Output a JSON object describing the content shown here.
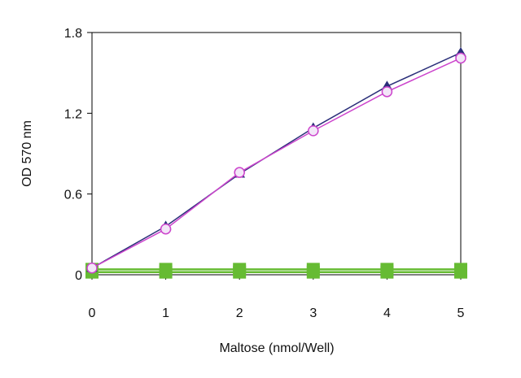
{
  "chart_data": {
    "type": "line",
    "xlabel": "Maltose (nmol/Well)",
    "ylabel": "OD 570 nm",
    "xlim": [
      0,
      5
    ],
    "ylim": [
      0,
      1.8
    ],
    "xticks": [
      0,
      1,
      2,
      3,
      4,
      5
    ],
    "xtick_labels": [
      "0",
      "1",
      "2",
      "3",
      "4",
      "5"
    ],
    "yticks": [
      0,
      0.6,
      1.2,
      1.8
    ],
    "ytick_labels": [
      "0",
      "0.6",
      "1.2",
      "1.8"
    ],
    "grid": false,
    "legend": "none",
    "x": [
      0,
      1,
      2,
      3,
      4,
      5
    ],
    "series": [
      {
        "values": [
          0.05,
          0.36,
          0.75,
          1.09,
          1.4,
          1.65
        ],
        "color": "#2b2f7a",
        "marker": "triangle"
      },
      {
        "values": [
          0.05,
          0.34,
          0.76,
          1.07,
          1.36,
          1.61
        ],
        "color": "#cc44cc",
        "marker": "circle-open"
      },
      {
        "values": [
          0.02,
          0.02,
          0.02,
          0.02,
          0.02,
          0.02
        ],
        "color": "#66bb33",
        "marker": "square"
      },
      {
        "values": [
          0.04,
          0.04,
          0.04,
          0.04,
          0.04,
          0.04
        ],
        "color": "#66bb33",
        "marker": "square"
      }
    ]
  }
}
